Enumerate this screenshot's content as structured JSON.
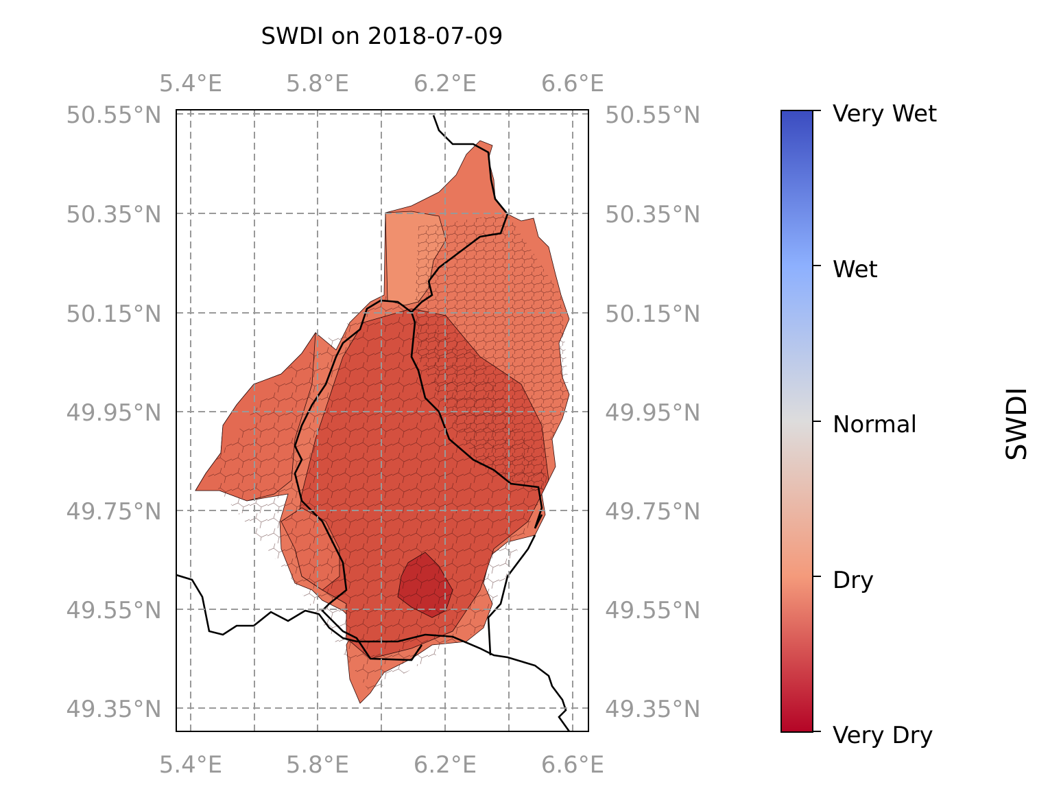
{
  "map": {
    "title": "SWDI on 2018-07-09",
    "lon_ticks": [
      "5.4°E",
      "5.8°E",
      "6.2°E",
      "6.6°E"
    ],
    "lat_ticks": [
      "50.55°N",
      "50.35°N",
      "50.15°N",
      "49.95°N",
      "49.75°N",
      "49.55°N",
      "49.35°N"
    ],
    "extent": {
      "lon": [
        5.35,
        6.65
      ],
      "lat": [
        49.3,
        50.55
      ]
    },
    "gridlines": true,
    "grid_style": "dashed",
    "region_fill_range": [
      "#b40426",
      "#f49a7b"
    ]
  },
  "colorbar": {
    "label": "SWDI",
    "ticks": [
      "Very Wet",
      "Wet",
      "Normal",
      "Dry",
      "Very Dry"
    ],
    "colormap": "coolwarm_r",
    "colors": [
      "#3b4cc0",
      "#8db0fe",
      "#dddcdc",
      "#f49a7b",
      "#b40426"
    ]
  }
}
